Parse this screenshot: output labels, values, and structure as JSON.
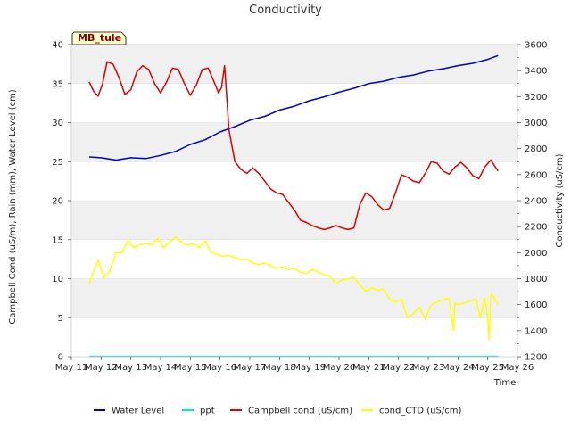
{
  "chart_data": {
    "type": "line",
    "title": "Conductivity",
    "station_tag": "MB_tule",
    "xlabel": "Time",
    "ylabel_left": "Campbell Cond (uS/m), Rain (mm), Water Level (cm)",
    "ylabel_right": "Conductivity (uS/cm)",
    "x_ticks": [
      "May 11",
      "May 12",
      "May 13",
      "May 14",
      "May 15",
      "May 16",
      "May 17",
      "May 18",
      "May 19",
      "May 20",
      "May 21",
      "May 22",
      "May 23",
      "May 24",
      "May 25",
      "May 26"
    ],
    "x_range_days": [
      11,
      26
    ],
    "y_left_ticks": [
      "0",
      "5",
      "10",
      "15",
      "20",
      "25",
      "30",
      "35",
      "40"
    ],
    "y_left_range": [
      0,
      40
    ],
    "y_right_ticks": [
      "1200",
      "1400",
      "1600",
      "1800",
      "2000",
      "2200",
      "2400",
      "2600",
      "2800",
      "3000",
      "3200",
      "3400",
      "3600"
    ],
    "y_right_range": [
      1200,
      3600
    ],
    "series": [
      {
        "name": "Water Level",
        "axis": "left",
        "color": "#0000cc",
        "x": [
          11.6,
          12.0,
          12.5,
          13.0,
          13.5,
          14.0,
          14.5,
          15.0,
          15.5,
          16.0,
          16.5,
          17.0,
          17.5,
          18.0,
          18.5,
          19.0,
          19.5,
          20.0,
          20.5,
          21.0,
          21.5,
          22.0,
          22.5,
          23.0,
          23.5,
          24.0,
          24.5,
          25.0,
          25.35
        ],
        "y": [
          25.6,
          25.5,
          25.2,
          25.5,
          25.4,
          25.8,
          26.3,
          27.2,
          27.8,
          28.8,
          29.5,
          30.3,
          30.8,
          31.6,
          32.1,
          32.8,
          33.3,
          33.9,
          34.4,
          35.0,
          35.3,
          35.8,
          36.1,
          36.6,
          36.9,
          37.3,
          37.6,
          38.1,
          38.6
        ]
      },
      {
        "name": "ppt",
        "axis": "left",
        "color": "#00e5e5",
        "x": [
          11.6,
          25.35
        ],
        "y": [
          0.05,
          0.05
        ]
      },
      {
        "name": "Campbell cond (uS/cm)",
        "axis": "left",
        "color": "#dd0000",
        "x": [
          11.6,
          11.75,
          11.9,
          12.05,
          12.2,
          12.4,
          12.6,
          12.8,
          13.0,
          13.2,
          13.4,
          13.6,
          13.8,
          14.0,
          14.2,
          14.4,
          14.6,
          14.8,
          15.0,
          15.2,
          15.4,
          15.6,
          15.8,
          15.95,
          16.05,
          16.15,
          16.3,
          16.5,
          16.7,
          16.9,
          17.1,
          17.3,
          17.5,
          17.7,
          17.9,
          18.1,
          18.3,
          18.5,
          18.7,
          18.9,
          19.1,
          19.3,
          19.5,
          19.7,
          19.9,
          20.1,
          20.3,
          20.5,
          20.7,
          20.9,
          21.1,
          21.3,
          21.5,
          21.7,
          21.9,
          22.1,
          22.3,
          22.5,
          22.7,
          22.9,
          23.1,
          23.3,
          23.5,
          23.7,
          23.9,
          24.1,
          24.3,
          24.5,
          24.7,
          24.9,
          25.1,
          25.35
        ],
        "y": [
          35.2,
          34.0,
          33.4,
          35.0,
          37.8,
          37.5,
          35.8,
          33.6,
          34.2,
          36.5,
          37.3,
          36.8,
          35.0,
          33.8,
          35.2,
          37.0,
          36.8,
          35.0,
          33.5,
          34.8,
          36.8,
          37.0,
          35.2,
          33.8,
          34.5,
          37.3,
          29.0,
          25.0,
          24.0,
          23.5,
          24.2,
          23.5,
          22.5,
          21.5,
          21.0,
          20.8,
          19.8,
          18.8,
          17.5,
          17.2,
          16.8,
          16.5,
          16.3,
          16.5,
          16.8,
          16.5,
          16.3,
          16.5,
          19.5,
          21.0,
          20.5,
          19.5,
          18.8,
          19.0,
          21.0,
          23.3,
          23.0,
          22.5,
          22.3,
          23.5,
          25.0,
          24.8,
          23.8,
          23.4,
          24.3,
          24.9,
          24.2,
          23.2,
          22.8,
          24.3,
          25.2,
          23.8
        ]
      },
      {
        "name": "cond_CTD (uS/cm)",
        "axis": "right",
        "color": "#ffff00",
        "x": [
          11.6,
          11.7,
          11.9,
          12.1,
          12.3,
          12.5,
          12.7,
          12.9,
          13.1,
          13.3,
          13.5,
          13.7,
          13.9,
          14.1,
          14.3,
          14.5,
          14.7,
          14.9,
          15.1,
          15.3,
          15.5,
          15.7,
          15.9,
          16.1,
          16.3,
          16.5,
          16.7,
          16.9,
          17.1,
          17.3,
          17.5,
          17.7,
          17.9,
          18.1,
          18.3,
          18.5,
          18.7,
          18.9,
          19.1,
          19.3,
          19.5,
          19.7,
          19.9,
          20.1,
          20.3,
          20.5,
          20.7,
          20.9,
          21.1,
          21.3,
          21.5,
          21.7,
          21.9,
          22.1,
          22.3,
          22.5,
          22.7,
          22.9,
          23.1,
          23.3,
          23.5,
          23.7,
          23.85,
          23.9,
          24.0,
          24.3,
          24.6,
          24.75,
          24.9,
          25.0,
          25.05,
          25.1,
          25.2,
          25.35
        ],
        "y": [
          1760,
          1830,
          1940,
          1810,
          1860,
          2000,
          2000,
          2090,
          2040,
          2060,
          2070,
          2060,
          2110,
          2040,
          2080,
          2120,
          2080,
          2060,
          2070,
          2040,
          2090,
          2000,
          1990,
          1970,
          1980,
          1960,
          1950,
          1950,
          1920,
          1910,
          1920,
          1900,
          1880,
          1890,
          1870,
          1880,
          1850,
          1840,
          1870,
          1850,
          1830,
          1820,
          1760,
          1790,
          1800,
          1810,
          1750,
          1700,
          1730,
          1710,
          1720,
          1640,
          1620,
          1640,
          1500,
          1530,
          1580,
          1490,
          1600,
          1620,
          1640,
          1650,
          1400,
          1610,
          1600,
          1620,
          1640,
          1500,
          1650,
          1500,
          1330,
          1680,
          1660,
          1600
        ]
      }
    ],
    "legend": {
      "position": "bottom",
      "entries": [
        "Water Level",
        "ppt",
        "Campbell cond (uS/cm)",
        "cond_CTD (uS/cm)"
      ]
    },
    "background_bands": true
  }
}
